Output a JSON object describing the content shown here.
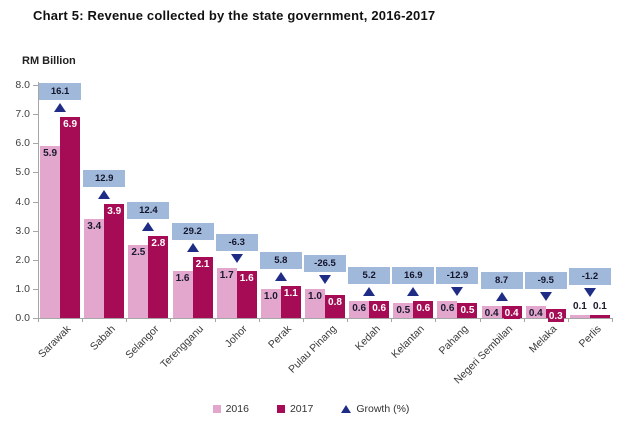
{
  "chart_data": {
    "type": "bar",
    "title": "Chart 5: Revenue collected by the state government, 2016-2017",
    "ylabel": "RM Billion",
    "ylim": [
      0.0,
      8.0
    ],
    "ytick_step": 1.0,
    "grid": false,
    "legend_position": "bottom",
    "categories": [
      "Sarawak",
      "Sabah",
      "Selangor",
      "Terengganu",
      "Johor",
      "Perak",
      "Pulau Pinang",
      "Kedah",
      "Kelantan",
      "Pahang",
      "Negeri Sembilan",
      "Melaka",
      "Perlis"
    ],
    "series": [
      {
        "name": "2016",
        "color": "#E3A7CE",
        "values": [
          5.9,
          3.4,
          2.5,
          1.6,
          1.7,
          1.0,
          1.0,
          0.6,
          0.5,
          0.6,
          0.4,
          0.4,
          0.1
        ]
      },
      {
        "name": "2017",
        "color": "#A60C55",
        "values": [
          6.9,
          3.9,
          2.8,
          2.1,
          1.6,
          1.1,
          0.8,
          0.6,
          0.6,
          0.5,
          0.4,
          0.3,
          0.1
        ]
      }
    ],
    "growth_series": {
      "name": "Growth (%)",
      "marker": "triangle",
      "marker_color": "#1F2C86",
      "badge_color": "#A0B9DA",
      "values": [
        16.1,
        12.9,
        12.4,
        29.2,
        -6.3,
        5.8,
        -26.5,
        5.2,
        16.9,
        -12.9,
        8.7,
        -9.5,
        -1.2
      ]
    },
    "legend": [
      "2016",
      "2017",
      "Growth (%)"
    ]
  },
  "colors": {
    "axis": "#A6A6A6",
    "value_label_dark": "#1A1A2E",
    "value_label_light": "#FFFFFF",
    "badge_text": "#14142B"
  }
}
